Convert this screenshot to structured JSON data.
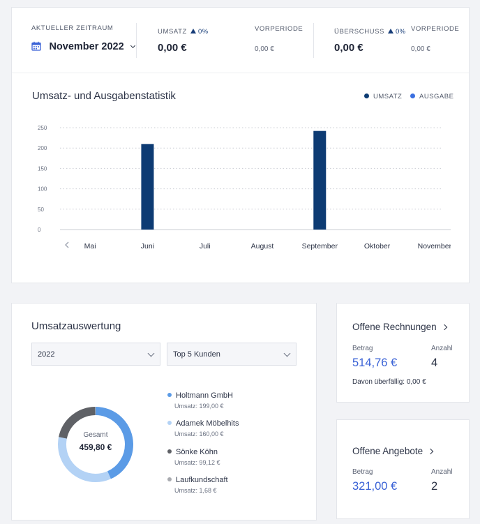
{
  "kpi": {
    "period_label": "AKTUELLER ZEITRAUM",
    "period_value": "November 2022",
    "umsatz_label": "UMSATZ",
    "umsatz_pct": "0%",
    "umsatz_value": "0,00 €",
    "vorperiode_label": "VORPERIODE",
    "vorperiode_umsatz": "0,00 €",
    "ueberschuss_label": "ÜBERSCHUSS",
    "ueberschuss_pct": "0%",
    "ueberschuss_value": "0,00 €",
    "vorperiode_label2": "VORPERIODE",
    "vorperiode_ueberschuss": "0,00 €",
    "colors": {
      "accent_dark": "#173d78",
      "accent_blue": "#3a62d6"
    },
    "icons": {
      "calendar": "calendar-icon",
      "chevron": "chevron-down-icon",
      "trend": "triangle-up-icon"
    }
  },
  "stats": {
    "title": "Umsatz- und Ausgabenstatistik",
    "legend": [
      {
        "label": "UMSATZ",
        "color": "#0d3b73"
      },
      {
        "label": "AUSGABE",
        "color": "#3a6fe0"
      }
    ]
  },
  "chart_data": {
    "type": "bar",
    "categories": [
      "Mai",
      "Juni",
      "Juli",
      "August",
      "September",
      "Oktober",
      "November"
    ],
    "series": [
      {
        "name": "UMSATZ",
        "color": "#0d3b73",
        "values": [
          0,
          210,
          0,
          0,
          242,
          0,
          0
        ]
      },
      {
        "name": "AUSGABE",
        "color": "#3a6fe0",
        "values": [
          0,
          0,
          0,
          0,
          0,
          0,
          0
        ]
      }
    ],
    "y_ticks": [
      0,
      50,
      100,
      150,
      200,
      250
    ],
    "ylim": [
      0,
      250
    ],
    "grid": true,
    "legend_position": "top-right",
    "nav_prev_icon": "chevron-left-icon"
  },
  "evaluation": {
    "title": "Umsatzauswertung",
    "year_select": "2022",
    "scope_select": "Top 5 Kunden",
    "center_label": "Gesamt",
    "center_value": "459,80 €",
    "total": 459.8,
    "customers": [
      {
        "name": "Holtmann GmbH",
        "sub": "Umsatz: 199,00 €",
        "amount": 199.0,
        "color": "#5b9be6"
      },
      {
        "name": "Adamek Möbelhits",
        "sub": "Umsatz: 160,00 €",
        "amount": 160.0,
        "color": "#b3d2f5"
      },
      {
        "name": "Sönke Köhn",
        "sub": "Umsatz: 99,12 €",
        "amount": 99.12,
        "color": "#5f6166"
      },
      {
        "name": "Laufkundschaft",
        "sub": "Umsatz: 1,68 €",
        "amount": 1.68,
        "color": "#a9abb0"
      }
    ]
  },
  "invoices": {
    "title": "Offene Rechnungen",
    "amount_label": "Betrag",
    "amount": "514,76 €",
    "count_label": "Anzahl",
    "count": "4",
    "overdue": "Davon überfällig: 0,00 €"
  },
  "offers": {
    "title": "Offene Angebote",
    "amount_label": "Betrag",
    "amount": "321,00 €",
    "count_label": "Anzahl",
    "count": "2"
  }
}
